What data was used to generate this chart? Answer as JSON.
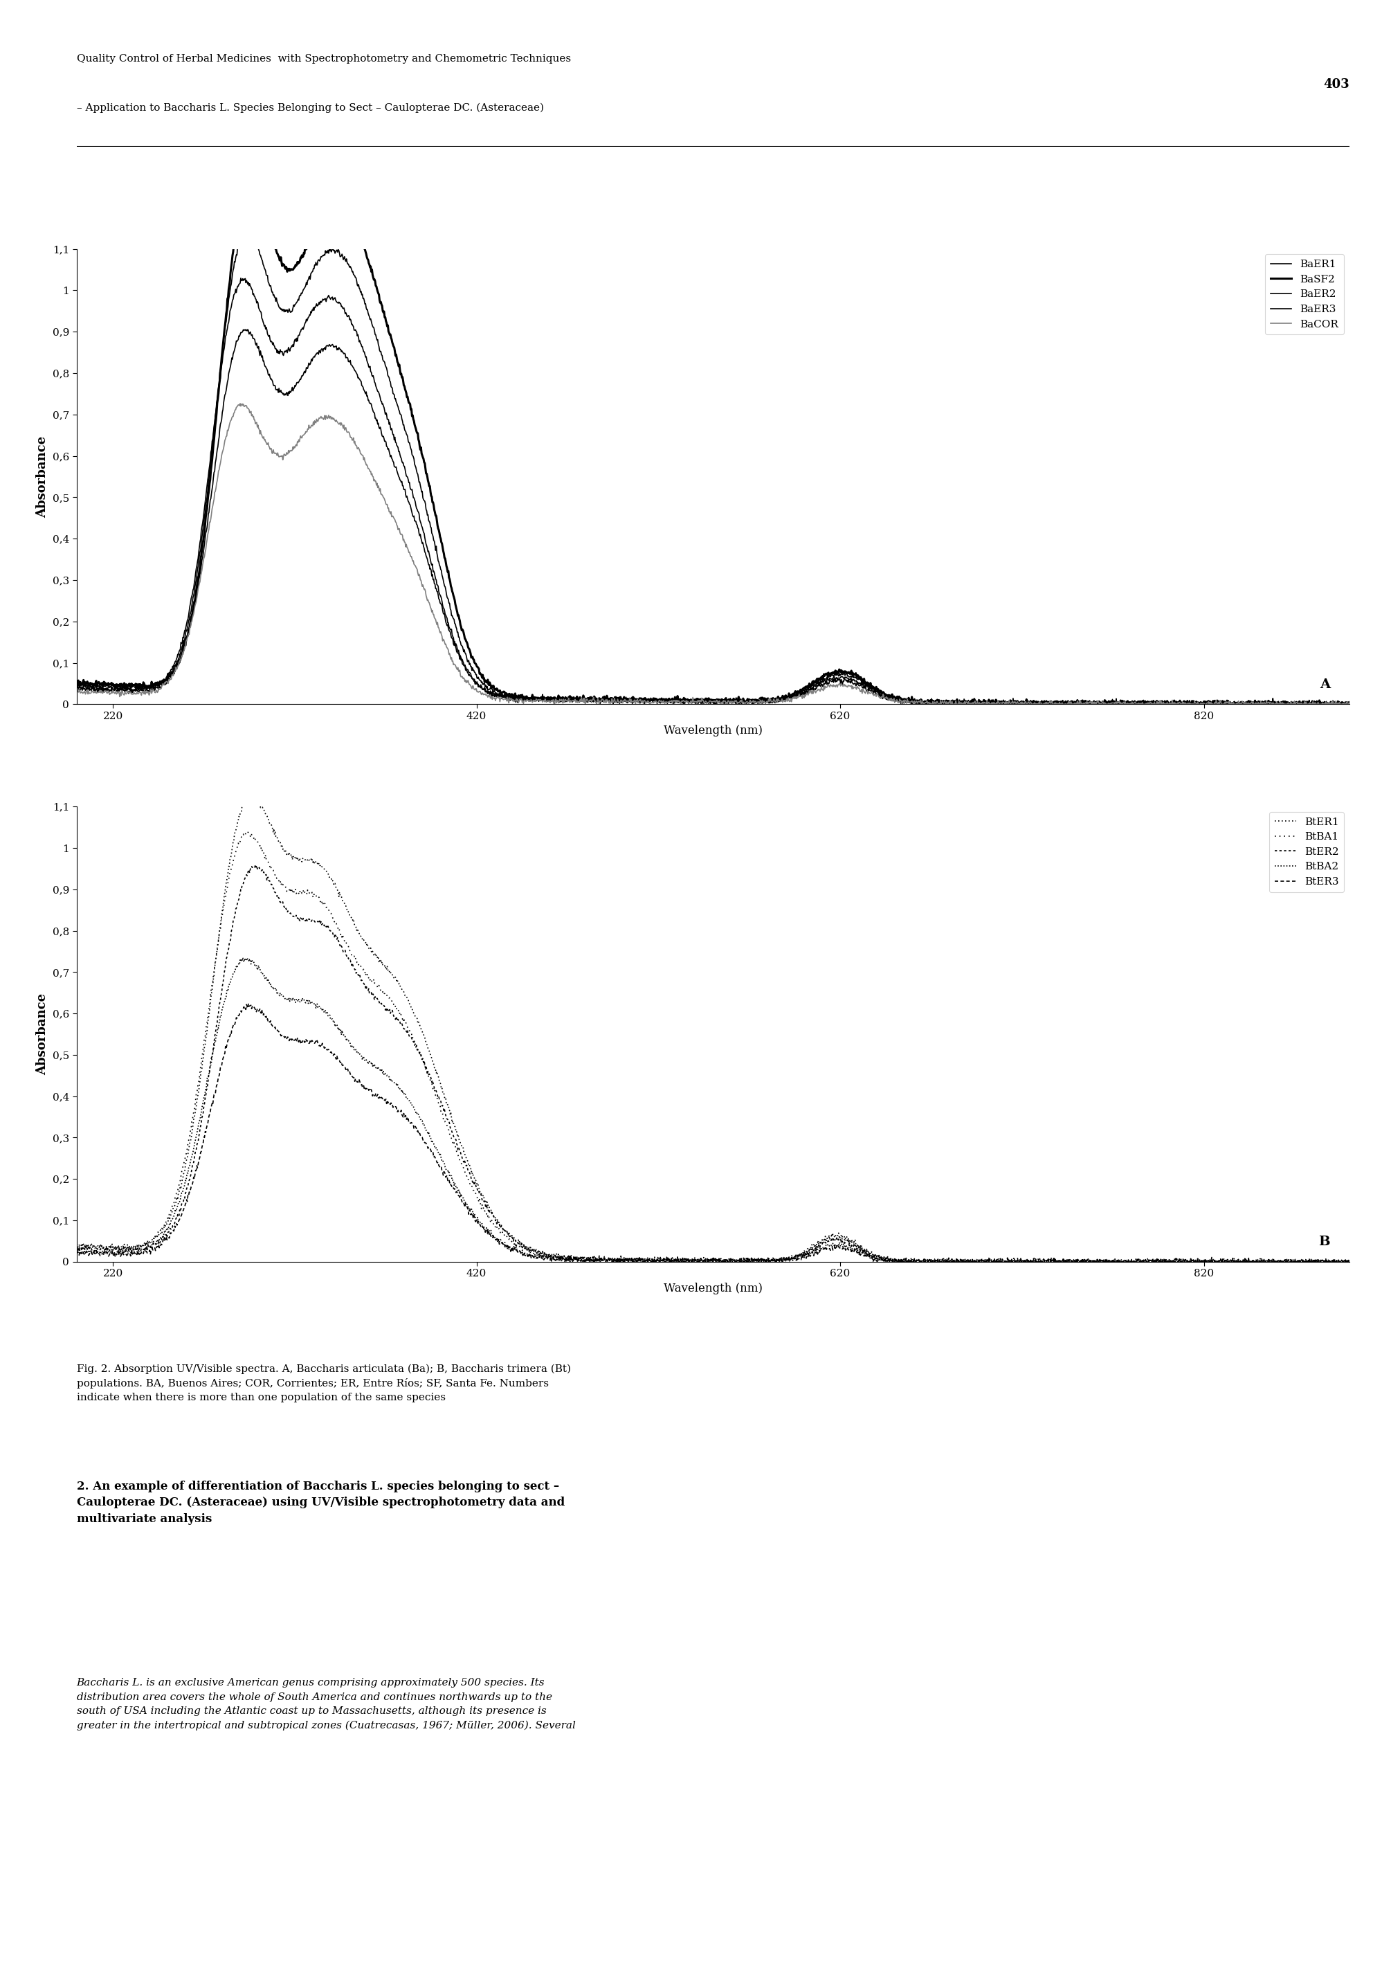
{
  "header_line1": "Quality Control of Herbal Medicines  with Spectrophotometry and Chemometric Techniques",
  "header_line2": "– Application to Baccharis L. Species Belonging to Sect – Caulopterae DC. (Asteraceae)",
  "header_page": "403",
  "caption": "Fig. 2. Absorption UV/Visible spectra. A, Baccharis articulata (Ba); B, Baccharis trimera (Bt)\npopulations. BA, Buenos Aires; COR, Corrientes; ER, Entre Ríos; SF, Santa Fe. Numbers\nindicate when there is more than one population of the same species",
  "section_title": "2. An example of differentiation of Baccharis L. species belonging to sect –\nCaulopterae DC. (Asteraceae) using UV/Visible spectrophotometry data and\nmultivariate analysis",
  "body_text": "Baccharis L. is an exclusive American genus comprising approximately 500 species. Its\ndistribution area covers the whole of South America and continues northwards up to the\nsouth of USA including the Atlantic coast up to Massachusetts, although its presence is\ngreater in the intertropical and subtropical zones (Cuatrecasas, 1967; Müller, 2006). Several",
  "xmin": 200,
  "xmax": 900,
  "ymin": 0,
  "ymax": 1.1,
  "xticks": [
    220,
    420,
    620,
    820
  ],
  "yticks": [
    0,
    0.1,
    0.2,
    0.3,
    0.4,
    0.5,
    0.6,
    0.7,
    0.8,
    0.9,
    1,
    1.1
  ],
  "xlabel": "Wavelength (nm)",
  "ylabel": "Absorbance",
  "legend_A": [
    "BaER1",
    "BaSF2",
    "BaER2",
    "BaER3",
    "BaCOR"
  ],
  "legend_B": [
    "BtER1",
    "BtBA1",
    "BtER2",
    "BtBA2",
    "BtER3"
  ],
  "label_A": "A",
  "label_B": "B"
}
